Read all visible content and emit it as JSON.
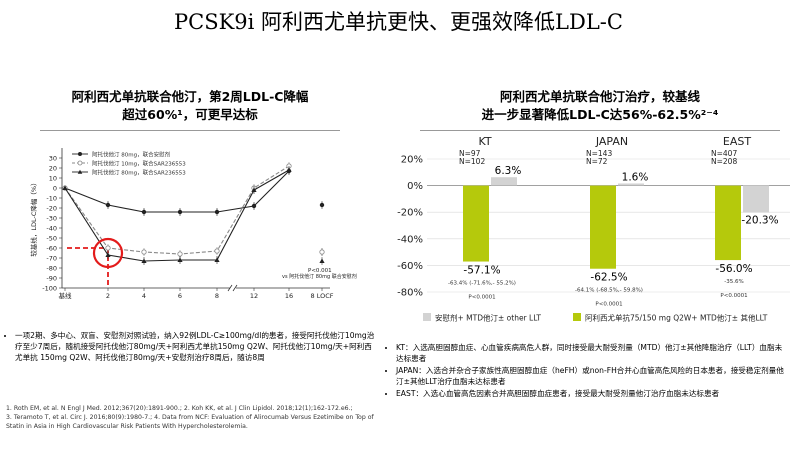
{
  "slide": {
    "title": "PCSK9i 阿利西尤单抗更快、更强效降低LDL-C"
  },
  "left_panel": {
    "title_line1": "阿利西尤单抗联合他汀，第2周LDL-C降幅",
    "title_line2": "超过60%¹，可更早达标",
    "notes": [
      "一项2期、多中心、双盲、安慰剂对照试验，纳入92例LDL-C≥100mg/dl的患者，接受阿托伐他汀10mg治疗至少7周后，随机接受阿托伐他汀80mg/天+阿利西尤单抗150mg Q2W、阿托伐他汀10mg/天+阿利西尤单抗 150mg Q2W、阿托伐他汀80mg/天+安慰剂治疗8周后，随访8周"
    ]
  },
  "right_panel": {
    "title_line1": "阿利西尤单抗联合他汀治疗，较基线",
    "title_line2": "进一步显著降低LDL-C达56%-62.5%²⁻⁴",
    "notes": [
      "KT：入选高胆固醇血症、心血管疾病高危人群，同时接受最大耐受剂量（MTD）他汀±其他降脂治疗（LLT）血脂未达标患者",
      "JAPAN：入选合并杂合子家族性高胆固醇血症（heFH）或non-FH合并心血管高危风险的日本患者，接受稳定剂量他汀±其他LLT治疗血脂未达标患者",
      "EAST：入选心血管高危因素合并高胆固醇血症患者，接受最大耐受剂量他汀治疗血脂未达标患者"
    ]
  },
  "references": {
    "line1": "1. Roth EM, et al. N Engl J Med. 2012;367(20):1891-900.; 2. Koh KK, et al. J Clin Lipidol. 2018;12(1);162-172.e6.;",
    "line2": "3. Teramoto T, et al. Circ J. 2016;80(9):1980-7.; 4. Data from NCF: Evaluation of Alirocumab Versus Ezetimibe on Top of",
    "line3": "Statin in Asia in High Cardiovascular Risk Patients With Hypercholesterolemia."
  },
  "colors": {
    "alirocumab": "#b5c90c",
    "placebo": "#d3d3d3",
    "highlight": "#e31b1b"
  },
  "chart_data": [
    {
      "type": "line",
      "ylabel": "较基线，LDL-C降幅（%）",
      "x_tick_labels": [
        "基线",
        "2",
        "4",
        "6",
        "8",
        "12",
        "16",
        "8 LOCF"
      ],
      "ylim": [
        -100,
        40
      ],
      "y_ticks": [
        30,
        20,
        10,
        0,
        -10,
        -20,
        -30,
        -40,
        -50,
        -60,
        -70,
        -80,
        -90,
        -100
      ],
      "legend": [
        "阿托伐他汀 80mg，联合安慰剂",
        "阿托伐他汀 10mg，联合SAR236553",
        "阿托伐他汀 80mg，联合SAR236553"
      ],
      "series": [
        {
          "marker": "filled-circle",
          "style": "solid",
          "x": [
            0,
            2,
            4,
            6,
            8,
            12,
            16
          ],
          "values": [
            0,
            -17,
            -24,
            -24,
            -24,
            -18,
            17
          ]
        },
        {
          "marker": "open-circle",
          "style": "dashed",
          "x": [
            0,
            2,
            4,
            6,
            8,
            12,
            16
          ],
          "values": [
            0,
            -60,
            -64,
            -66,
            -63,
            0,
            22
          ]
        },
        {
          "marker": "filled-triangle",
          "style": "solid",
          "x": [
            0,
            2,
            4,
            6,
            8,
            12,
            16
          ],
          "values": [
            0,
            -67,
            -73,
            -72,
            -72,
            -2,
            18
          ]
        }
      ],
      "locf_points": [
        -17,
        -64,
        -73
      ],
      "annotations": {
        "p_value": "P<0.001",
        "vs": "vs 阿托伐他汀 80mg 联合安慰剂"
      },
      "highlight_value": -60
    },
    {
      "type": "bar",
      "ylim": [
        -80,
        20
      ],
      "y_tick_labels": [
        "20%",
        "0%",
        "-20%",
        "-40%",
        "-60%",
        "-80%"
      ],
      "categories": [
        "KT",
        "JAPAN",
        "EAST"
      ],
      "series": [
        {
          "name": "阿利西尤单抗75/150 mg Q2W+ MTD他汀± 其他LLT",
          "values": [
            -57.1,
            -62.5,
            -56.0
          ],
          "labels": [
            "-57.1%",
            "-62.5%",
            "-56.0%"
          ],
          "ci_text": [
            "-63.4% (-71.6%,- 55.2%)",
            "-64.1% (-68.5%,- 59.8%)",
            "-35.6%"
          ],
          "p_text": [
            "P<0.0001",
            "P<0.0001",
            "P<0.0001"
          ]
        },
        {
          "name": "安慰剂+ MTD他汀± other LLT",
          "values": [
            6.3,
            1.6,
            -20.3
          ],
          "labels": [
            "6.3%",
            "1.6%",
            "-20.3%"
          ]
        }
      ],
      "n_labels": [
        [
          "N=97",
          "N=102"
        ],
        [
          "N=143",
          "N=72"
        ],
        [
          "N=407",
          "N=208"
        ]
      ]
    }
  ]
}
